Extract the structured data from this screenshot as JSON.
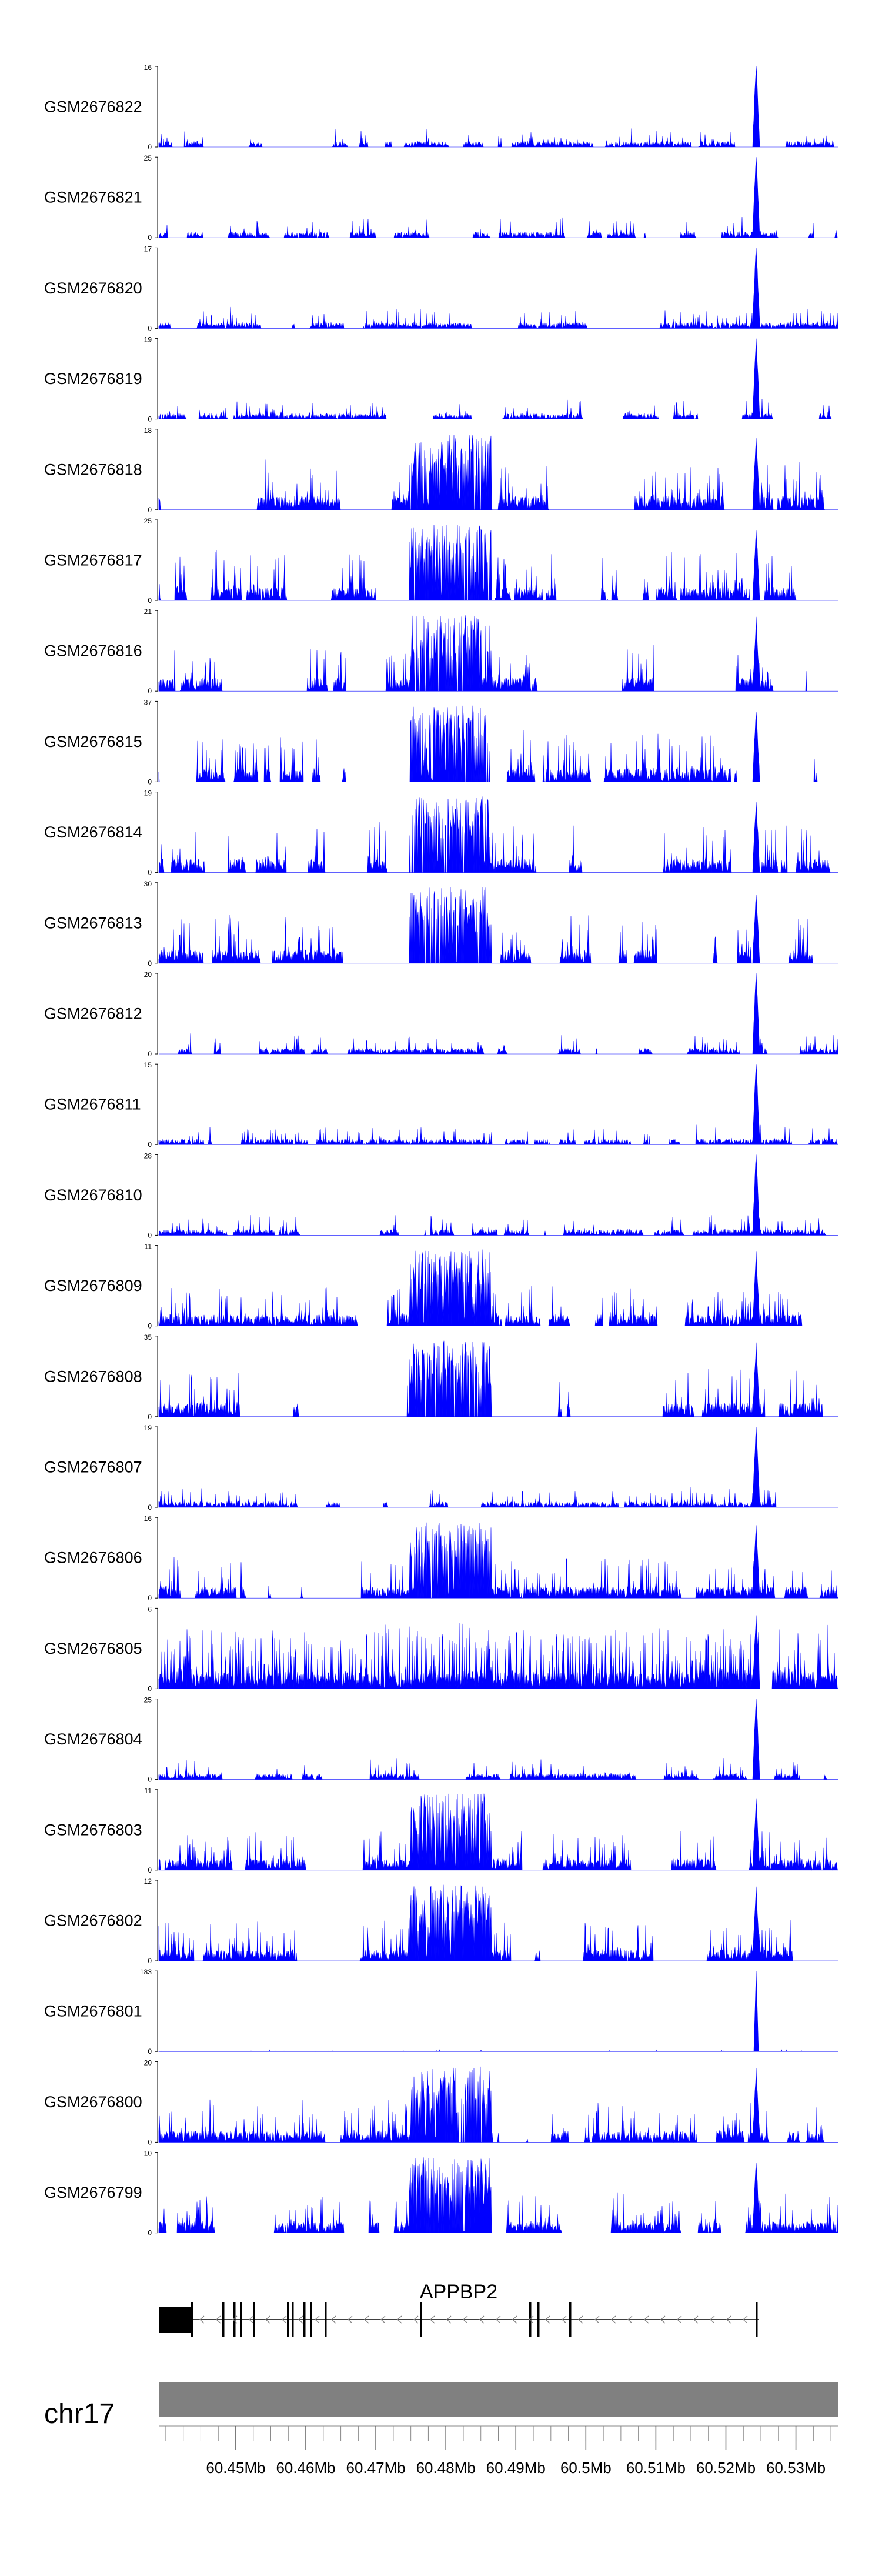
{
  "chart_data": {
    "type": "area",
    "title": "",
    "xlabel": "",
    "ylabel": "",
    "chromosome": "chr17",
    "gene": {
      "name": "APPBP2",
      "strand": "-"
    },
    "fill_color": "#0000ff",
    "gene_color": "#000000",
    "ideogram_color": "#808080",
    "xlim_mb": [
      60.439,
      60.536
    ],
    "x_ticks_mb": [
      60.45,
      60.46,
      60.47,
      60.48,
      60.49,
      60.5,
      60.51,
      60.52,
      60.53
    ],
    "x_tick_labels": [
      "60.45Mb",
      "60.46Mb",
      "60.47Mb",
      "60.48Mb",
      "60.49Mb",
      "60.5Mb",
      "60.51Mb",
      "60.52Mb",
      "60.53Mb"
    ],
    "series": [
      {
        "name": "GSM2676822",
        "ymax": 16,
        "ymin_label": "0",
        "profile": "peak"
      },
      {
        "name": "GSM2676821",
        "ymax": 25,
        "ymin_label": "0",
        "profile": "peak"
      },
      {
        "name": "GSM2676820",
        "ymax": 17,
        "ymin_label": "0",
        "profile": "peak"
      },
      {
        "name": "GSM2676819",
        "ymax": 19,
        "ymin_label": "0",
        "profile": "peak"
      },
      {
        "name": "GSM2676818",
        "ymax": 18,
        "ymin_label": "0",
        "profile": "broad"
      },
      {
        "name": "GSM2676817",
        "ymax": 25,
        "ymin_label": "0",
        "profile": "broad"
      },
      {
        "name": "GSM2676816",
        "ymax": 21,
        "ymin_label": "0",
        "profile": "broad"
      },
      {
        "name": "GSM2676815",
        "ymax": 37,
        "ymin_label": "0",
        "profile": "broad"
      },
      {
        "name": "GSM2676814",
        "ymax": 19,
        "ymin_label": "0",
        "profile": "broad"
      },
      {
        "name": "GSM2676813",
        "ymax": 30,
        "ymin_label": "0",
        "profile": "broad"
      },
      {
        "name": "GSM2676812",
        "ymax": 20,
        "ymin_label": "0",
        "profile": "peak"
      },
      {
        "name": "GSM2676811",
        "ymax": 15,
        "ymin_label": "0",
        "profile": "peak"
      },
      {
        "name": "GSM2676810",
        "ymax": 28,
        "ymin_label": "0",
        "profile": "peak"
      },
      {
        "name": "GSM2676809",
        "ymax": 11,
        "ymin_label": "0",
        "profile": "dense"
      },
      {
        "name": "GSM2676808",
        "ymax": 35,
        "ymin_label": "0",
        "profile": "broad"
      },
      {
        "name": "GSM2676807",
        "ymax": 19,
        "ymin_label": "0",
        "profile": "peak"
      },
      {
        "name": "GSM2676806",
        "ymax": 16,
        "ymin_label": "0",
        "profile": "dense"
      },
      {
        "name": "GSM2676805",
        "ymax": 6,
        "ymin_label": "0",
        "profile": "noise"
      },
      {
        "name": "GSM2676804",
        "ymax": 25,
        "ymin_label": "0",
        "profile": "peak"
      },
      {
        "name": "GSM2676803",
        "ymax": 11,
        "ymin_label": "0",
        "profile": "dense"
      },
      {
        "name": "GSM2676802",
        "ymax": 12,
        "ymin_label": "0",
        "profile": "dense"
      },
      {
        "name": "GSM2676801",
        "ymax": 183,
        "ymin_label": "0",
        "profile": "sharp"
      },
      {
        "name": "GSM2676800",
        "ymax": 20,
        "ymin_label": "0",
        "profile": "dense"
      },
      {
        "name": "GSM2676799",
        "ymax": 10,
        "ymin_label": "0",
        "profile": "dense"
      }
    ]
  }
}
